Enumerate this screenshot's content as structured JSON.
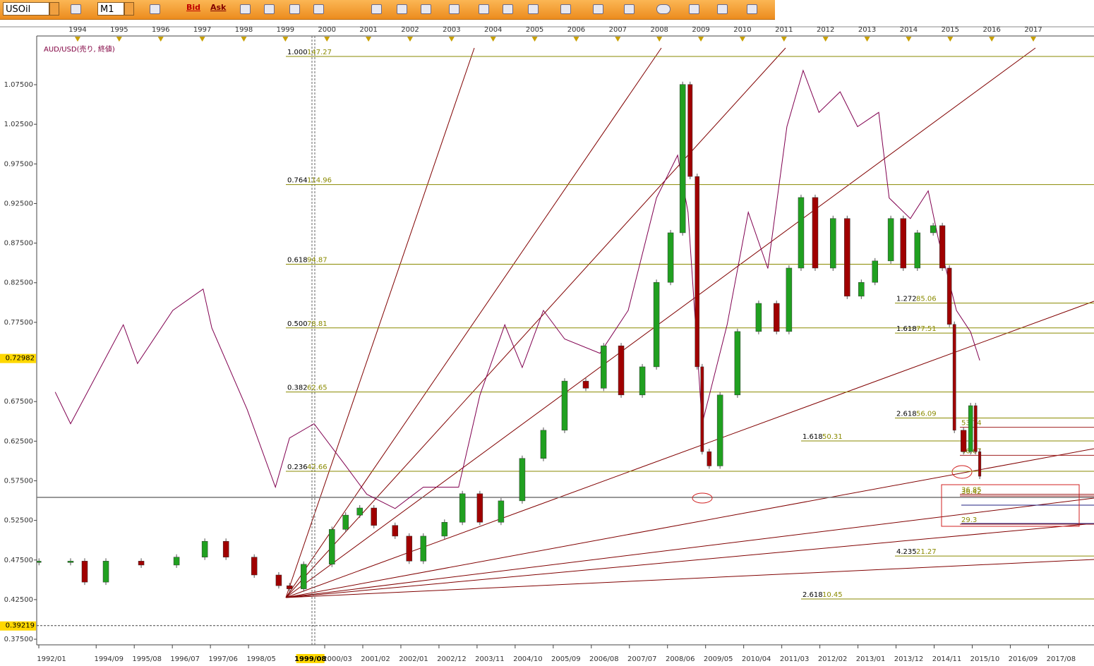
{
  "toolbar": {
    "symbol": "USOil",
    "timeframe": "M1",
    "bid": "Bid",
    "ask": "Ask"
  },
  "chart": {
    "series_label": "AUD/USD(売り, 終値)",
    "xlim": [
      1993.015,
      2018.46
    ],
    "ylim": [
      0.3697,
      1.124
    ],
    "y2lim": [
      -0.76,
      149.94
    ],
    "top_years": [
      1994,
      1995,
      1996,
      1997,
      1998,
      1999,
      2000,
      2001,
      2002,
      2003,
      2004,
      2005,
      2006,
      2007,
      2008,
      2009,
      2010,
      2011,
      2012,
      2013,
      2014,
      2015,
      2016,
      2017
    ],
    "bottom_dates": [
      "1992/01",
      "1994/09",
      "1995/08",
      "1996/07",
      "1997/06",
      "1998/05",
      "2000/03",
      "2001/02",
      "2002/01",
      "2002/12",
      "2003/11",
      "2004/10",
      "2005/09",
      "2006/08",
      "2007/07",
      "2008/06",
      "2009/05",
      "2010/04",
      "2011/03",
      "2012/02",
      "2013/01",
      "2013/12",
      "2014/11",
      "2015/10",
      "2016/09",
      "2017/08"
    ],
    "cursor_date": "1999/08",
    "yticks": [
      {
        "value": 1.075,
        "label": "1.07500"
      },
      {
        "value": 1.025,
        "label": "1.02500"
      },
      {
        "value": 0.975,
        "label": "0.97500"
      },
      {
        "value": 0.925,
        "label": "0.92500"
      },
      {
        "value": 0.875,
        "label": "0.87500"
      },
      {
        "value": 0.825,
        "label": "0.82500"
      },
      {
        "value": 0.775,
        "label": "0.77500"
      },
      {
        "value": 0.675,
        "label": "0.67500"
      },
      {
        "value": 0.625,
        "label": "0.62500"
      },
      {
        "value": 0.575,
        "label": "0.57500"
      },
      {
        "value": 0.525,
        "label": "0.52500"
      },
      {
        "value": 0.475,
        "label": "0.47500"
      },
      {
        "value": 0.425,
        "label": "0.42500"
      },
      {
        "value": 0.375,
        "label": "0.37500"
      }
    ],
    "price_tags": [
      0.72982,
      0.39219
    ],
    "fib_groups": [
      {
        "levels": [
          {
            "ratio": "1.000",
            "value": 147.27
          },
          {
            "ratio": "0.764",
            "value": 114.96
          },
          {
            "ratio": "0.618",
            "value": 94.87
          },
          {
            "ratio": "0.500",
            "value": 78.81
          },
          {
            "ratio": "0.382",
            "value": 62.65
          },
          {
            "ratio": "0.236",
            "value": 42.66
          }
        ]
      },
      {
        "levels": [
          {
            "ratio": "1.272",
            "value": 85.06
          },
          {
            "ratio": "1.618",
            "value": 77.51
          },
          {
            "ratio": "2.618",
            "value": 56.09
          },
          {
            "ratio": "4.235",
            "value": 21.27
          }
        ]
      },
      {
        "levels": [
          {
            "ratio": "1.618",
            "value": 50.31
          },
          {
            "ratio": "2.618",
            "value": 10.45
          }
        ]
      },
      {
        "levels": [
          {
            "value": 53.74
          },
          {
            "value": 46.67
          },
          {
            "value": 36.85
          },
          {
            "value": 36.42
          },
          {
            "value": 29.3
          }
        ]
      }
    ],
    "oil": {
      "t": [
        1993.07,
        1993.83,
        1994.17,
        1994.68,
        1995.53,
        1996.38,
        1997.06,
        1997.57,
        1998.25,
        1998.84,
        1999.1,
        1999.44,
        2000.12,
        2000.45,
        2000.79,
        2001.13,
        2001.64,
        2001.98,
        2002.32,
        2002.83,
        2003.26,
        2003.68,
        2004.19,
        2004.7,
        2005.21,
        2005.72,
        2006.23,
        2006.66,
        2007.08,
        2007.59,
        2007.93,
        2008.27,
        2008.56,
        2008.74,
        2008.91,
        2009.03,
        2009.2,
        2009.46,
        2009.88,
        2010.39,
        2010.82,
        2011.12,
        2011.41,
        2011.75,
        2012.18,
        2012.52,
        2012.86,
        2013.19,
        2013.57,
        2013.87,
        2014.21,
        2014.59,
        2014.81,
        2014.98,
        2015.1,
        2015.32,
        2015.49,
        2015.61,
        2015.71
      ],
      "values": [
        20,
        20,
        14.7,
        20,
        19,
        21,
        25,
        21,
        16.5,
        13.8,
        13,
        19.2,
        28,
        31.6,
        33.4,
        29,
        26.3,
        20,
        26.3,
        29.8,
        37,
        29.8,
        35.2,
        45.9,
        53,
        65.4,
        63.6,
        74.3,
        61.9,
        69,
        90.3,
        102.8,
        140.2,
        117,
        69,
        47.6,
        44,
        61.9,
        77.9,
        85,
        77.9,
        93.9,
        111.7,
        93.9,
        106.4,
        86.8,
        90.3,
        95.7,
        106.4,
        93.9,
        102.8,
        104.6,
        93.9,
        79.7,
        53,
        47.6,
        59.2,
        47.6,
        41.4
      ]
    },
    "audusd": {
      "t": [
        1993.46,
        1993.83,
        1995.1,
        1995.44,
        1996.29,
        1997.02,
        1997.23,
        1998.08,
        1998.76,
        1999.1,
        1999.69,
        2000.45,
        2000.96,
        2001.64,
        2002.32,
        2003.17,
        2003.68,
        2004.28,
        2004.7,
        2005.21,
        2005.72,
        2006.57,
        2007.25,
        2007.93,
        2008.44,
        2008.69,
        2009.03,
        2009.63,
        2010.14,
        2010.61,
        2011.07,
        2011.46,
        2011.84,
        2012.35,
        2012.77,
        2013.28,
        2013.53,
        2014.04,
        2014.47,
        2014.72,
        2015.15,
        2015.49,
        2015.71
      ],
      "values": [
        0.687,
        0.647,
        0.772,
        0.723,
        0.79,
        0.817,
        0.768,
        0.665,
        0.567,
        0.629,
        0.647,
        0.594,
        0.558,
        0.54,
        0.567,
        0.567,
        0.683,
        0.772,
        0.718,
        0.79,
        0.754,
        0.736,
        0.79,
        0.932,
        0.986,
        0.914,
        0.647,
        0.772,
        0.914,
        0.843,
        1.022,
        1.093,
        1.04,
        1.066,
        1.022,
        1.04,
        0.932,
        0.906,
        0.941,
        0.879,
        0.79,
        0.763,
        0.727
      ]
    }
  }
}
